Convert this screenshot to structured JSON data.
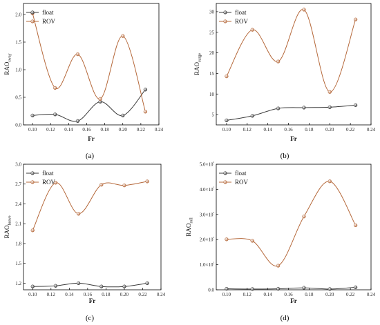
{
  "chart_data": [
    {
      "id": "a",
      "type": "line",
      "panel_label": "(a)",
      "xlabel": "Fr",
      "ylabel_main": "RAO",
      "ylabel_sub": "sway",
      "xlim": [
        0.09,
        0.24
      ],
      "ylim": [
        0.0,
        2.2
      ],
      "xticks": [
        0.1,
        0.12,
        0.14,
        0.16,
        0.18,
        0.2,
        0.22,
        0.24
      ],
      "xtick_labels": [
        "0.10",
        "0.12",
        "0.14",
        "0.16",
        "0.18",
        "0.20",
        "0.22",
        "0.24"
      ],
      "yticks": [
        0.0,
        0.5,
        1.0,
        1.5,
        2.0
      ],
      "ytick_labels": [
        "0.0",
        "0.5",
        "1.0",
        "1.5",
        "2.0"
      ],
      "legend_position": "top-left",
      "series": [
        {
          "name": "float",
          "color": "#3a3a3a",
          "x": [
            0.1,
            0.125,
            0.15,
            0.175,
            0.2,
            0.225
          ],
          "y": [
            0.17,
            0.19,
            0.07,
            0.42,
            0.17,
            0.64
          ]
        },
        {
          "name": "ROV",
          "color": "#b5683a",
          "x": [
            0.1,
            0.125,
            0.15,
            0.175,
            0.2,
            0.225
          ],
          "y": [
            2.02,
            0.67,
            1.28,
            0.47,
            1.61,
            0.24
          ]
        }
      ]
    },
    {
      "id": "b",
      "type": "line",
      "panel_label": "(b)",
      "xlabel": "Fr",
      "ylabel_main": "RAO",
      "ylabel_sub": "surge",
      "xlim": [
        0.09,
        0.24
      ],
      "ylim": [
        2.5,
        32.0
      ],
      "xticks": [
        0.1,
        0.12,
        0.14,
        0.16,
        0.18,
        0.2,
        0.22,
        0.24
      ],
      "xtick_labels": [
        "0.10",
        "0.12",
        "0.14",
        "0.16",
        "0.18",
        "0.20",
        "0.22",
        "0.24"
      ],
      "yticks": [
        5,
        10,
        15,
        20,
        25,
        30
      ],
      "ytick_labels": [
        "5",
        "10",
        "15",
        "20",
        "25",
        "30"
      ],
      "legend_position": "top-left",
      "series": [
        {
          "name": "float",
          "color": "#3a3a3a",
          "x": [
            0.1,
            0.125,
            0.15,
            0.175,
            0.2,
            0.225
          ],
          "y": [
            3.6,
            4.7,
            6.5,
            6.7,
            6.8,
            7.3
          ]
        },
        {
          "name": "ROV",
          "color": "#b5683a",
          "x": [
            0.1,
            0.125,
            0.15,
            0.175,
            0.2,
            0.225
          ],
          "y": [
            14.3,
            25.6,
            17.9,
            30.5,
            10.5,
            28.1
          ]
        }
      ]
    },
    {
      "id": "c",
      "type": "line",
      "panel_label": "(c)",
      "xlabel": "Fr",
      "ylabel_main": "RAO",
      "ylabel_sub": "heave",
      "xlim": [
        0.09,
        0.24
      ],
      "ylim": [
        1.1,
        3.0
      ],
      "xticks": [
        0.1,
        0.12,
        0.14,
        0.16,
        0.18,
        0.2,
        0.22,
        0.24
      ],
      "xtick_labels": [
        "0.10",
        "0.12",
        "0.14",
        "0.16",
        "0.18",
        "0.20",
        "0.22",
        "0.24"
      ],
      "yticks": [
        1.2,
        1.5,
        1.8,
        2.1,
        2.4,
        2.7,
        3.0
      ],
      "ytick_labels": [
        "1.2",
        "1.5",
        "1.8",
        "2.1",
        "2.4",
        "2.7",
        "3.0"
      ],
      "legend_position": "top-left",
      "series": [
        {
          "name": "float",
          "color": "#3a3a3a",
          "x": [
            0.1,
            0.125,
            0.15,
            0.175,
            0.2,
            0.225
          ],
          "y": [
            1.15,
            1.16,
            1.2,
            1.15,
            1.15,
            1.2
          ]
        },
        {
          "name": "ROV",
          "color": "#b5683a",
          "x": [
            0.1,
            0.125,
            0.15,
            0.175,
            0.2,
            0.225
          ],
          "y": [
            2.0,
            2.72,
            2.25,
            2.69,
            2.68,
            2.74
          ]
        }
      ]
    },
    {
      "id": "d",
      "type": "line",
      "panel_label": "(d)",
      "xlabel": "Fr",
      "ylabel_main": "RAO",
      "ylabel_sub": "roll",
      "xlim": [
        0.09,
        0.24
      ],
      "ylim": [
        0,
        500
      ],
      "xticks": [
        0.1,
        0.12,
        0.14,
        0.16,
        0.18,
        0.2,
        0.22,
        0.24
      ],
      "xtick_labels": [
        "0.10",
        "0.12",
        "0.14",
        "0.16",
        "0.18",
        "0.20",
        "0.22",
        "0.24"
      ],
      "yticks": [
        0,
        100,
        200,
        300,
        400,
        500
      ],
      "ytick_labels": [
        "0.0",
        "1.0×10²",
        "2.0×10²",
        "3.0×10²",
        "4.0×10²",
        "5.0×10²"
      ],
      "legend_position": "top-left",
      "series": [
        {
          "name": "float",
          "color": "#3a3a3a",
          "x": [
            0.1,
            0.125,
            0.15,
            0.175,
            0.2,
            0.225
          ],
          "y": [
            4,
            3,
            4,
            8,
            3,
            10
          ]
        },
        {
          "name": "ROV",
          "color": "#b5683a",
          "x": [
            0.1,
            0.125,
            0.15,
            0.175,
            0.2,
            0.225
          ],
          "y": [
            201,
            195,
            96,
            292,
            432,
            257
          ]
        }
      ]
    }
  ]
}
